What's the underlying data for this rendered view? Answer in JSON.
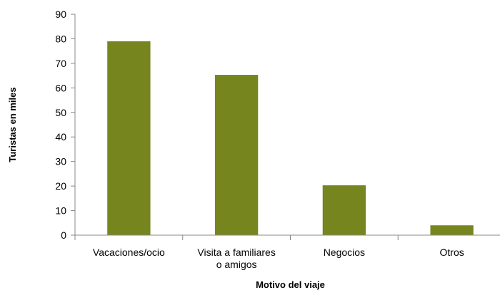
{
  "chart_data": {
    "type": "bar",
    "title": "",
    "xlabel": "Motivo del viaje",
    "ylabel": "Turistas en miles",
    "ylim": [
      0,
      90
    ],
    "yticks": [
      0,
      10,
      20,
      30,
      40,
      50,
      60,
      70,
      80,
      90
    ],
    "categories": [
      [
        "Vacaciones/ocio"
      ],
      [
        "Visita a familiares",
        "o amigos"
      ],
      [
        "Negocios"
      ],
      [
        "Otros"
      ]
    ],
    "values": [
      79,
      65.3,
      20.3,
      4
    ],
    "grid": false,
    "legend": "none",
    "bar_color": "#76851e"
  }
}
